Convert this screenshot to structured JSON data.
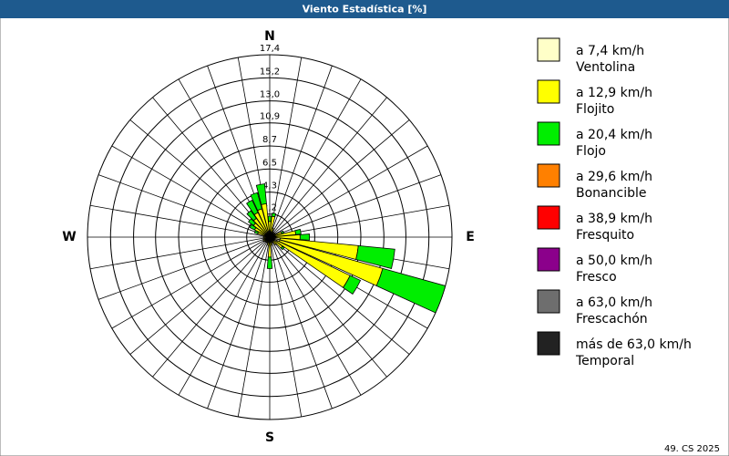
{
  "chart_data": {
    "type": "windrose",
    "title": "Viento Estadística [%]",
    "footer": "49. CS 2025",
    "x": [
      0,
      10,
      20,
      30,
      40,
      50,
      60,
      70,
      80,
      90,
      100,
      110,
      120,
      130,
      140,
      150,
      160,
      170,
      180,
      190,
      200,
      210,
      220,
      230,
      240,
      250,
      260,
      270,
      280,
      290,
      300,
      310,
      320,
      330,
      340,
      350
    ],
    "compass": [
      {
        "value": 0,
        "label": "N"
      },
      {
        "value": 90,
        "label": "E"
      },
      {
        "value": 180,
        "label": "S"
      },
      {
        "value": 270,
        "label": "W"
      }
    ],
    "ylim": [
      0,
      17.4
    ],
    "yticks": [
      {
        "value": 2.2,
        "label": "2,2"
      },
      {
        "value": 4.3,
        "label": "4,3"
      },
      {
        "value": 6.5,
        "label": "6,5"
      },
      {
        "value": 8.7,
        "label": "8,7"
      },
      {
        "value": 10.9,
        "label": "10,9"
      },
      {
        "value": 13.0,
        "label": "13,0"
      },
      {
        "value": 15.2,
        "label": "15,2"
      },
      {
        "value": 17.4,
        "label": "17,4"
      }
    ],
    "series": [
      {
        "name": "a 7,4 km/h",
        "label": "Ventolina",
        "color": "#ffffc8",
        "values": [
          0.5,
          0.5,
          0.4,
          0.3,
          0.3,
          0.3,
          0.3,
          0.4,
          0.5,
          0.6,
          1.0,
          1.0,
          0.8,
          0.5,
          0.4,
          0.3,
          0.3,
          0.3,
          0.4,
          0.3,
          0.3,
          0.3,
          0.3,
          0.3,
          0.3,
          0.3,
          0.3,
          0.3,
          0.3,
          0.4,
          0.4,
          0.4,
          0.4,
          0.4,
          0.5,
          0.6
        ]
      },
      {
        "name": "a 12,9 km/h",
        "label": "Flojito",
        "color": "#ffff00",
        "values": [
          1.0,
          1.5,
          0.5,
          0.3,
          0.2,
          0.2,
          0.3,
          0.8,
          2.0,
          2.3,
          7.5,
          10.2,
          7.7,
          1.0,
          0.5,
          0.3,
          0.3,
          0.5,
          1.5,
          0.5,
          0.3,
          0.2,
          0.3,
          0.3,
          0.4,
          0.3,
          0.3,
          0.3,
          0.3,
          0.8,
          1.2,
          1.5,
          1.8,
          2.2,
          2.3,
          2.6
        ]
      },
      {
        "name": "a 20,4 km/h",
        "label": "Flojo",
        "color": "#00ee00",
        "values": [
          0.5,
          0.3,
          0,
          0,
          0,
          0,
          0,
          0.2,
          0.5,
          0.9,
          3.5,
          6.2,
          1.1,
          0.2,
          0,
          0,
          0,
          0,
          1.1,
          0,
          0,
          0,
          0,
          0,
          0,
          0,
          0,
          0,
          0,
          0.3,
          0.5,
          0.6,
          0.9,
          1.3,
          1.6,
          1.9
        ]
      },
      {
        "name": "a 29,6 km/h",
        "label": "Bonancible",
        "color": "#ff8000",
        "values": [
          0,
          0,
          0,
          0,
          0,
          0,
          0,
          0,
          0,
          0,
          0,
          0,
          0,
          0,
          0,
          0,
          0,
          0,
          0,
          0,
          0,
          0,
          0,
          0,
          0,
          0,
          0,
          0,
          0,
          0,
          0,
          0,
          0,
          0,
          0,
          0
        ]
      },
      {
        "name": "a 38,9 km/h",
        "label": "Fresquito",
        "color": "#ff0000",
        "values": [
          0,
          0,
          0,
          0,
          0,
          0,
          0,
          0,
          0,
          0,
          0,
          0,
          0,
          0,
          0,
          0,
          0,
          0,
          0,
          0,
          0,
          0,
          0,
          0,
          0,
          0,
          0,
          0,
          0,
          0,
          0,
          0,
          0,
          0,
          0,
          0
        ]
      },
      {
        "name": "a 50,0 km/h",
        "label": "Fresco",
        "color": "#8b008b",
        "values": [
          0,
          0,
          0,
          0,
          0,
          0,
          0,
          0,
          0,
          0,
          0,
          0,
          0,
          0,
          0,
          0,
          0,
          0,
          0,
          0,
          0,
          0,
          0,
          0,
          0,
          0,
          0,
          0,
          0,
          0,
          0,
          0,
          0,
          0,
          0,
          0
        ]
      },
      {
        "name": "a 63,0 km/h",
        "label": "Frescachón",
        "color": "#6e6e6e",
        "values": [
          0,
          0,
          0,
          0,
          0,
          0,
          0,
          0,
          0,
          0,
          0,
          0,
          0,
          0,
          0,
          0,
          0,
          0,
          0,
          0,
          0,
          0,
          0,
          0,
          0,
          0,
          0,
          0,
          0,
          0,
          0,
          0,
          0,
          0,
          0,
          0
        ]
      },
      {
        "name": "más de 63,0 km/h",
        "label": "Temporal",
        "color": "#222222",
        "values": [
          0,
          0,
          0,
          0,
          0,
          0,
          0,
          0,
          0,
          0,
          0,
          0,
          0,
          0,
          0,
          0,
          0,
          0,
          0,
          0,
          0,
          0,
          0,
          0,
          0,
          0,
          0,
          0,
          0,
          0,
          0,
          0,
          0,
          0,
          0,
          0
        ]
      }
    ]
  }
}
